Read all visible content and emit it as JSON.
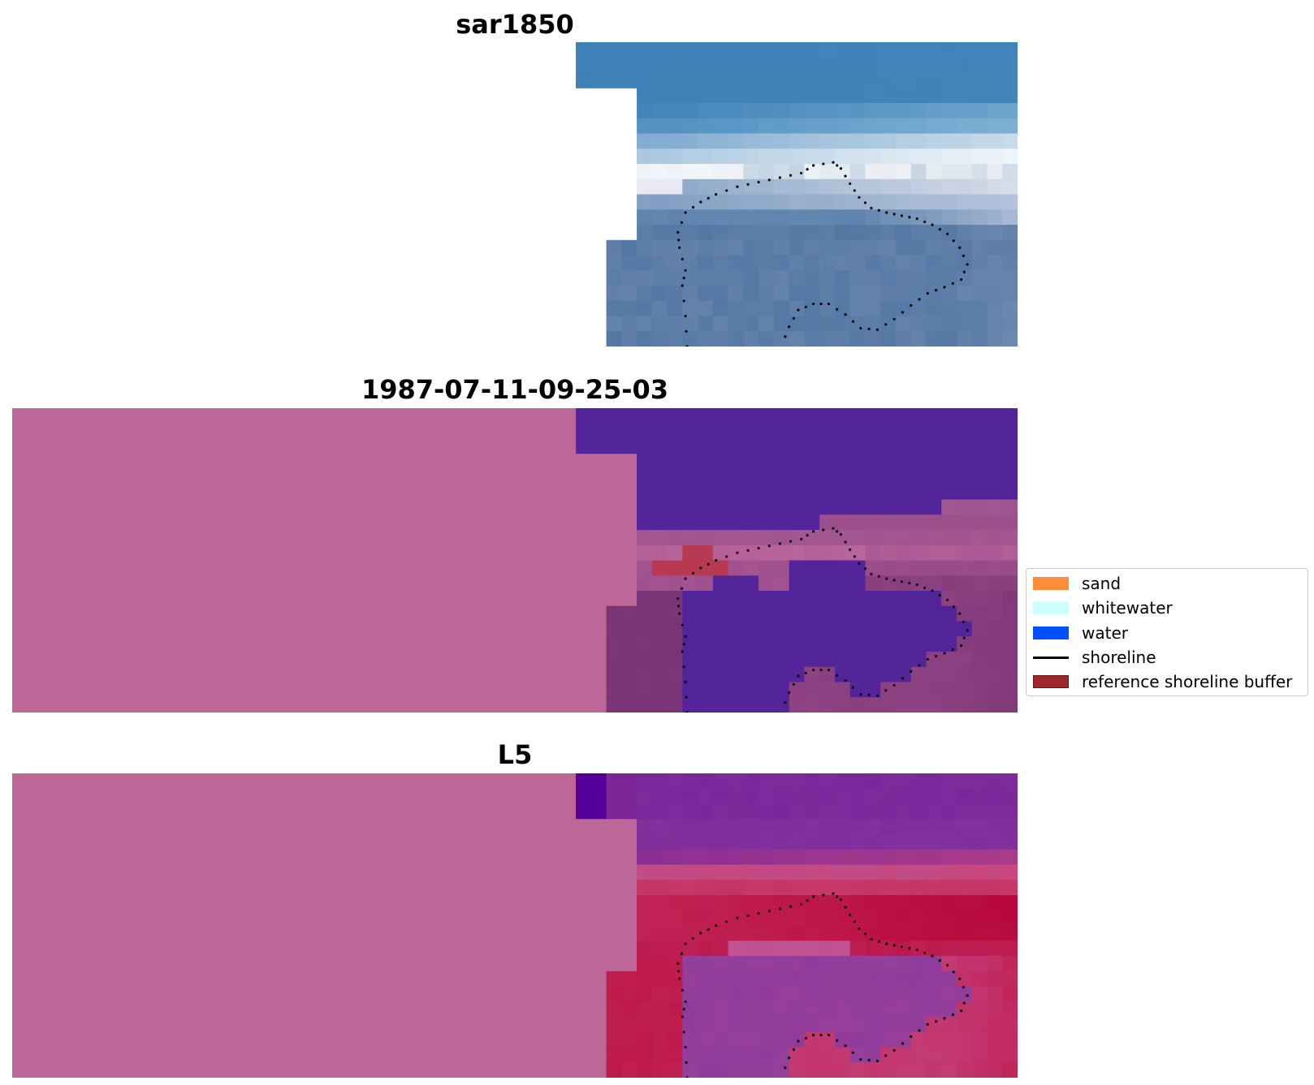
{
  "figure": {
    "panels": [
      {
        "id": "sar",
        "title": "sar1850",
        "style": "sar"
      },
      {
        "id": "classified",
        "title": "1987-07-11-09-25-03",
        "style": "classified"
      },
      {
        "id": "index",
        "title": "L5",
        "style": "index"
      }
    ]
  },
  "legend": {
    "items": [
      {
        "label": "sand",
        "kind": "patch",
        "color": "#ff8c3c"
      },
      {
        "label": "whitewater",
        "kind": "patch",
        "color": "#ccffff"
      },
      {
        "label": "water",
        "kind": "patch",
        "color": "#0050ff"
      },
      {
        "label": "shoreline",
        "kind": "line",
        "color": "#000000"
      },
      {
        "label": "reference shoreline buffer",
        "kind": "patch",
        "color": "#a0282d",
        "edge": "#6b1414"
      }
    ]
  },
  "colors": {
    "buffer_overlay": "#bc6797",
    "classified_water": "#54249a",
    "classified_sand": "#b83a52",
    "shoreline_dots": "#000000"
  },
  "chart_data": [
    {
      "type": "heatmap",
      "title": "sar1850",
      "grid": false,
      "axes": "off",
      "colormap": "blues-white (SAR backscatter)"
    },
    {
      "type": "heatmap",
      "title": "1987-07-11-09-25-03",
      "grid": false,
      "axes": "off",
      "classes": [
        "sand",
        "whitewater",
        "water"
      ],
      "overlays": [
        "shoreline",
        "reference shoreline buffer"
      ]
    },
    {
      "type": "heatmap",
      "title": "L5",
      "grid": false,
      "axes": "off",
      "colormap": "purple-red (index)",
      "overlays": [
        "shoreline",
        "reference shoreline buffer"
      ]
    }
  ]
}
